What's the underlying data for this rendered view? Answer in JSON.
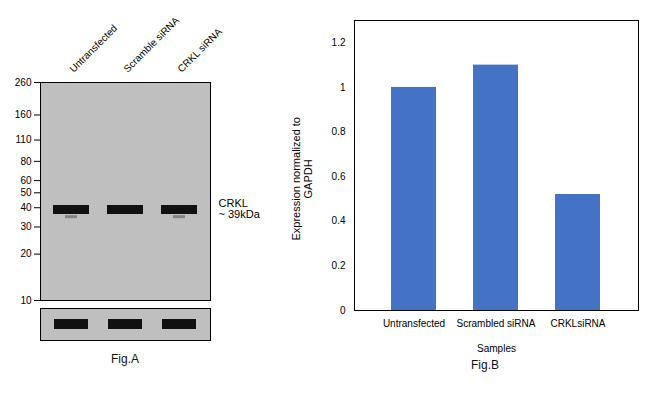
{
  "chart_data": [
    {
      "type": "blot",
      "categories": [
        "Untransfected",
        "Scramble siRNA",
        "CRKL siRNA"
      ],
      "log": "y",
      "ylim": [
        10,
        260
      ],
      "yticks": [
        260,
        160,
        110,
        80,
        60,
        50,
        40,
        30,
        20,
        10
      ],
      "color": "#111111",
      "values": [
        39,
        39,
        39
      ],
      "faint_values": [
        35,
        null,
        35
      ],
      "annotations": [
        {
          "text": "CRKL",
          "y": 39
        },
        {
          "text": "~ 39kDa",
          "y": 39
        },
        {
          "text": "Fig.A"
        }
      ]
    },
    {
      "type": "bar",
      "categories": [
        "Untransfected",
        "Scrambled siRNA",
        "CRKLsiRNA"
      ],
      "values": [
        1.0,
        1.1,
        0.52
      ],
      "color": "#4472c4",
      "ylim": [
        0,
        1.3
      ],
      "yticks": [
        0,
        0.2,
        0.4,
        0.6,
        0.8,
        1,
        1.2
      ],
      "ylabel": "Expression normalized to\nGAPDH",
      "xlabel": "Samples",
      "annotations": [
        {
          "text": "Fig.B"
        }
      ]
    }
  ]
}
